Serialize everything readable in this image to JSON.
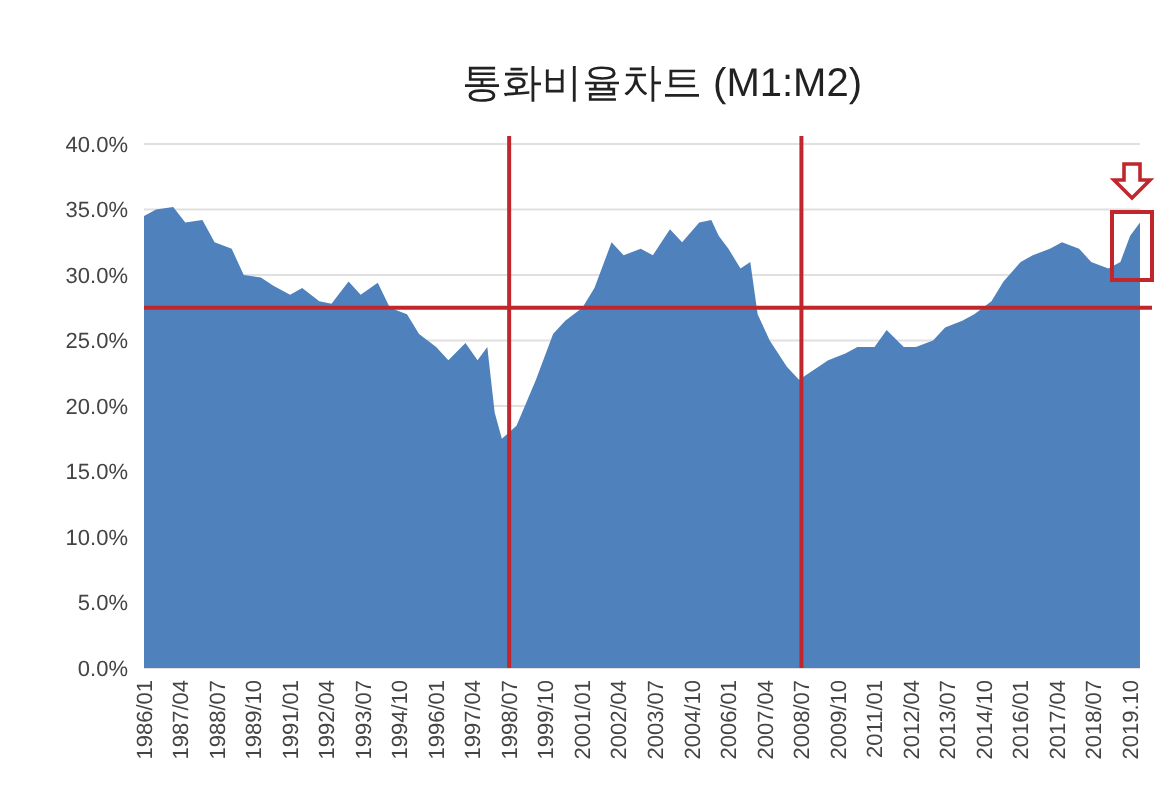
{
  "chart_data": {
    "type": "area",
    "title": "통화비율차트 (M1:M2)",
    "x": [
      "1986-01",
      "1986-06",
      "1987-01",
      "1987-06",
      "1988-01",
      "1988-06",
      "1989-01",
      "1989-06",
      "1990-01",
      "1990-06",
      "1991-01",
      "1991-06",
      "1992-01",
      "1992-06",
      "1993-01",
      "1993-06",
      "1994-01",
      "1994-06",
      "1995-01",
      "1995-06",
      "1996-01",
      "1996-06",
      "1997-01",
      "1997-06",
      "1997-10",
      "1998-01",
      "1998-04",
      "1998-07",
      "1998-10",
      "1999-06",
      "2000-01",
      "2000-06",
      "2001-01",
      "2001-06",
      "2002-01",
      "2002-06",
      "2003-01",
      "2003-06",
      "2004-01",
      "2004-06",
      "2005-01",
      "2005-06",
      "2005-09",
      "2006-01",
      "2006-06",
      "2006-10",
      "2007-01",
      "2007-06",
      "2008-01",
      "2008-06",
      "2008-10",
      "2009-06",
      "2010-01",
      "2010-06",
      "2011-01",
      "2011-06",
      "2012-01",
      "2012-06",
      "2013-01",
      "2013-06",
      "2014-01",
      "2014-06",
      "2015-01",
      "2015-06",
      "2016-01",
      "2016-06",
      "2017-01",
      "2017-06",
      "2018-01",
      "2018-06",
      "2019-01",
      "2019-06",
      "2019-10",
      "2020-02"
    ],
    "series": [
      {
        "color": "#4f81bd",
        "values": [
          34.5,
          35,
          35.2,
          34,
          34.2,
          32.5,
          32,
          30,
          29.8,
          29.2,
          28.5,
          29,
          28,
          27.8,
          29.5,
          28.5,
          29.4,
          27.5,
          27,
          25.5,
          24.5,
          23.5,
          24.8,
          23.5,
          24.5,
          19.5,
          17.5,
          18,
          18.5,
          22,
          25.5,
          26.5,
          27.5,
          29,
          32.5,
          31.5,
          32,
          31.5,
          33.5,
          32.5,
          34,
          34.2,
          33,
          32,
          30.5,
          31,
          27,
          25,
          23,
          22,
          22.5,
          23.5,
          24,
          24.5,
          24.5,
          25.8,
          24.5,
          24.5,
          25,
          26,
          26.5,
          27,
          28,
          29.5,
          31,
          31.5,
          32,
          32.5,
          32,
          31,
          30.5,
          31,
          33,
          34
        ]
      }
    ],
    "xlim": [
      "1986-01",
      "2020-02"
    ],
    "xticks": [
      {
        "value": "1986-01",
        "label": "1986/01"
      },
      {
        "value": "1987-04",
        "label": "1987/04"
      },
      {
        "value": "1988-07",
        "label": "1988/07"
      },
      {
        "value": "1989-10",
        "label": "1989/10"
      },
      {
        "value": "1991-01",
        "label": "1991/01"
      },
      {
        "value": "1992-04",
        "label": "1992/04"
      },
      {
        "value": "1993-07",
        "label": "1993/07"
      },
      {
        "value": "1994-10",
        "label": "1994/10"
      },
      {
        "value": "1996-01",
        "label": "1996/01"
      },
      {
        "value": "1997-04",
        "label": "1997/04"
      },
      {
        "value": "1998-07",
        "label": "1998/07"
      },
      {
        "value": "1999-10",
        "label": "1999/10"
      },
      {
        "value": "2001-01",
        "label": "2001/01"
      },
      {
        "value": "2002-04",
        "label": "2002/04"
      },
      {
        "value": "2003-07",
        "label": "2003/07"
      },
      {
        "value": "2004-10",
        "label": "2004/10"
      },
      {
        "value": "2006-01",
        "label": "2006/01"
      },
      {
        "value": "2007-04",
        "label": "2007/04"
      },
      {
        "value": "2008-07",
        "label": "2008/07"
      },
      {
        "value": "2009-10",
        "label": "2009/10"
      },
      {
        "value": "2011-01",
        "label": "2011/01"
      },
      {
        "value": "2012-04",
        "label": "2012/04"
      },
      {
        "value": "2013-07",
        "label": "2013/07"
      },
      {
        "value": "2014-10",
        "label": "2014/10"
      },
      {
        "value": "2016-01",
        "label": "2016/01"
      },
      {
        "value": "2017-04",
        "label": "2017/04"
      },
      {
        "value": "2018-07",
        "label": "2018/07"
      },
      {
        "value": "2019-10",
        "label": "2019.10"
      }
    ],
    "ylim": [
      0,
      40
    ],
    "yticks": [
      {
        "value": 0,
        "label": "0.0%"
      },
      {
        "value": 5,
        "label": "5.0%"
      },
      {
        "value": 10,
        "label": "10.0%"
      },
      {
        "value": 15,
        "label": "15.0%"
      },
      {
        "value": 20,
        "label": "20.0%"
      },
      {
        "value": 25,
        "label": "25.0%"
      },
      {
        "value": 30,
        "label": "30.0%"
      },
      {
        "value": 35,
        "label": "35.0%"
      },
      {
        "value": 40,
        "label": "40.0%"
      }
    ],
    "grid": "y",
    "ref_lines": [
      {
        "axis": "y",
        "value": 27.5,
        "color": "#c0272d"
      },
      {
        "axis": "x",
        "value": "1998-07",
        "color": "#c0272d"
      },
      {
        "axis": "x",
        "value": "2008-07",
        "color": "#c0272d"
      }
    ]
  }
}
